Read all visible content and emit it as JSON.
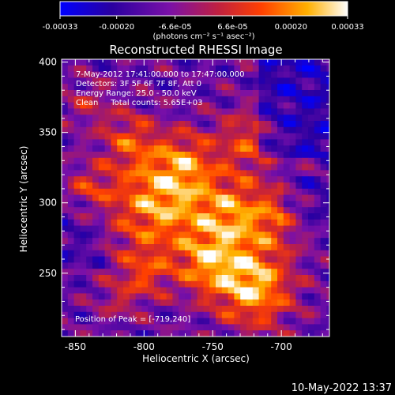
{
  "chart_data": {
    "type": "heatmap",
    "title": "Reconstructed RHESSI Image",
    "xlabel": "Heliocentric X (arcsec)",
    "ylabel": "Heliocentric Y (arcsec)",
    "xlim": [
      -860,
      -665
    ],
    "ylim": [
      205,
      402
    ],
    "x_ticks": [
      -850,
      -800,
      -750,
      -700
    ],
    "y_ticks": [
      250,
      300,
      350,
      400
    ],
    "colorbar": {
      "ticks": [
        -0.00033,
        -0.0002,
        -6.6e-05,
        6.6e-05,
        0.0002,
        0.00033
      ],
      "tick_labels": [
        "-0.00033",
        "-0.00020",
        "-6.6e-05",
        "6.6e-05",
        "0.00020",
        "0.00033"
      ],
      "units_label": "(photons cm⁻² s⁻¹ asec⁻²)",
      "range": [
        -0.00033,
        0.00033
      ],
      "colors": [
        "#0000ff",
        "#2a00a0",
        "#7a10a8",
        "#c02040",
        "#ff4000",
        "#ffb000",
        "#ffffff"
      ]
    },
    "info_text": [
      "7-May-2012 17:41:00.000 to 17:47:00.000",
      "Detectors: 3F 5F 6F 7F 8F, Att 0",
      "Energy Range: 25.0 - 50.0 keV",
      "Clean     Total counts: 5.65E+03"
    ],
    "peak_text": "Position of Peak = [-719,240]",
    "peak_position": [
      -719,
      240
    ],
    "grid": false
  },
  "footer": {
    "timestamp": "10-May-2022 13:37"
  }
}
